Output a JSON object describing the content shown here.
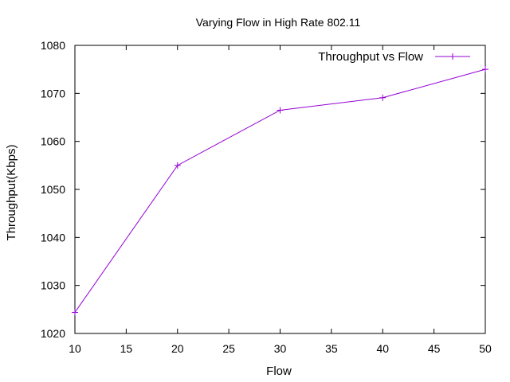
{
  "chart_data": {
    "type": "line",
    "title": "Varying Flow in High Rate 802.11",
    "xlabel": "Flow",
    "ylabel": "Throughput(Kbps)",
    "xlim": [
      10,
      50
    ],
    "ylim": [
      1020,
      1080
    ],
    "xticks": [
      "10",
      "15",
      "20",
      "25",
      "30",
      "35",
      "40",
      "45",
      "50"
    ],
    "yticks": [
      "1020",
      "1030",
      "1040",
      "1050",
      "1060",
      "1070",
      "1080"
    ],
    "grid": false,
    "legend_position": "top-right",
    "series": [
      {
        "name": "Throughput vs Flow",
        "color": "#9400d3",
        "marker": "plus",
        "x": [
          10,
          20,
          30,
          40,
          50
        ],
        "y": [
          1024.4,
          1055,
          1066.5,
          1069.1,
          1075
        ]
      }
    ]
  }
}
